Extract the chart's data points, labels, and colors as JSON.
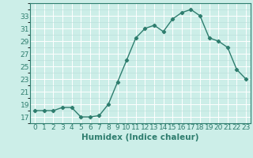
{
  "x": [
    0,
    1,
    2,
    3,
    4,
    5,
    6,
    7,
    8,
    9,
    10,
    11,
    12,
    13,
    14,
    15,
    16,
    17,
    18,
    19,
    20,
    21,
    22,
    23
  ],
  "y": [
    18.0,
    18.0,
    18.0,
    18.5,
    18.5,
    17.0,
    17.0,
    17.2,
    19.0,
    22.5,
    26.0,
    29.5,
    31.0,
    31.5,
    30.5,
    32.5,
    33.5,
    34.0,
    33.0,
    29.5,
    29.0,
    28.0,
    24.5,
    23.0
  ],
  "line_color": "#2e7d6e",
  "marker": "D",
  "marker_size": 2.2,
  "bg_color": "#cceee8",
  "grid_color": "#ffffff",
  "grid_minor_color": "#b8ddd8",
  "xlabel": "Humidex (Indice chaleur)",
  "ylim": [
    16,
    35
  ],
  "xlim": [
    -0.5,
    23.5
  ],
  "yticks": [
    17,
    19,
    21,
    23,
    25,
    27,
    29,
    31,
    33
  ],
  "xticks": [
    0,
    1,
    2,
    3,
    4,
    5,
    6,
    7,
    8,
    9,
    10,
    11,
    12,
    13,
    14,
    15,
    16,
    17,
    18,
    19,
    20,
    21,
    22,
    23
  ],
  "tick_label_fontsize": 6.5,
  "xlabel_fontsize": 7.5,
  "line_width": 1.0
}
